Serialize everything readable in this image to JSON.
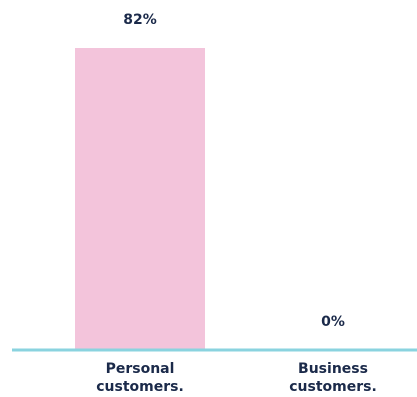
{
  "chart_data": {
    "type": "bar",
    "categories": [
      "Personal customers.",
      "Business customers."
    ],
    "category_lines": [
      [
        "Personal",
        "customers."
      ],
      [
        "Business",
        "customers."
      ]
    ],
    "values": [
      82,
      0
    ],
    "value_labels": [
      "82%",
      "0%"
    ],
    "ylim": [
      0,
      82
    ],
    "unit": "%",
    "grid": false,
    "colors": {
      "bar": "#f3c4db",
      "axis": "#8ad3df",
      "text": "#1b2a4a"
    }
  }
}
